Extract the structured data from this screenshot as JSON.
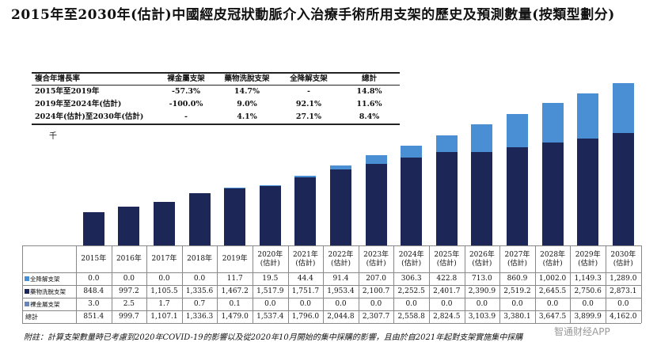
{
  "title": "2015年至2030年(估計)中國經皮冠狀動脈介入治療手術所用支架的歷史及預測數量(按類型劃分)",
  "cagr_table": {
    "header": [
      "複合年增長率",
      "裸金屬支架",
      "藥物洗脫支架",
      "全降解支架",
      "總計"
    ],
    "rows": [
      [
        "2015年至2019年",
        "-57.3%",
        "14.7%",
        "-",
        "14.8%"
      ],
      [
        "2019年至2024年(估計)",
        "-100.0%",
        "9.0%",
        "92.1%",
        "11.6%"
      ],
      [
        "2024年(估計)至2030年(估計)",
        "-",
        "4.1%",
        "27.1%",
        "8.4%"
      ]
    ]
  },
  "chart_data": {
    "type": "bar",
    "stacked": true,
    "unit": "千",
    "categories": [
      "2015年",
      "2016年",
      "2017年",
      "2018年",
      "2019年",
      "2020年(估計)",
      "2021年(估計)",
      "2022年(估計)",
      "2023年(估計)",
      "2024年(估計)",
      "2025年(估計)",
      "2026年(估計)",
      "2027年(估計)",
      "2028年(估計)",
      "2029年(估計)",
      "2030年(估計)"
    ],
    "series": [
      {
        "name": "全降解支架",
        "color": "#4a8fd4",
        "values": [
          0,
          0,
          0,
          0,
          11.7,
          19.5,
          44.4,
          91.4,
          207.0,
          306.3,
          422.8,
          713.0,
          860.9,
          1002.0,
          1149.3,
          1289.0
        ],
        "value_labels": [
          "0.0",
          "0.0",
          "0.0",
          "0.0",
          "11.7",
          "19.5",
          "44.4",
          "91.4",
          "207.0",
          "306.3",
          "422.8",
          "713.0",
          "860.9",
          "1,002.0",
          "1,149.3",
          "1,289.0"
        ]
      },
      {
        "name": "藥物洗脫支架",
        "color": "#1c2757",
        "values": [
          848.4,
          997.2,
          1105.5,
          1335.6,
          1467.2,
          1517.9,
          1751.7,
          1953.4,
          2100.7,
          2252.5,
          2401.7,
          2390.9,
          2519.2,
          2645.5,
          2750.6,
          2873.1
        ],
        "value_labels": [
          "848.4",
          "997.2",
          "1,105.5",
          "1,335.6",
          "1,467.2",
          "1,517.9",
          "1,751.7",
          "1,953.4",
          "2,100.7",
          "2,252.5",
          "2,401.7",
          "2,390.9",
          "2,519.2",
          "2,645.5",
          "2,750.6",
          "2,873.1"
        ]
      },
      {
        "name": "裸金屬支架",
        "color": "#6a86b8",
        "values": [
          3.0,
          2.5,
          1.7,
          0.7,
          0.1,
          0,
          0,
          0,
          0,
          0,
          0,
          0,
          0,
          0,
          0,
          0
        ],
        "value_labels": [
          "3.0",
          "2.5",
          "1.7",
          "0.7",
          "0.1",
          "0.0",
          "0.0",
          "0.0",
          "0.0",
          "0.0",
          "0.0",
          "0.0",
          "0.0",
          "0.0",
          "0.0",
          "0.0"
        ]
      }
    ],
    "total": {
      "name": "總計",
      "values": [
        851.4,
        999.7,
        1107.1,
        1336.3,
        1479.0,
        1537.4,
        1796.0,
        2044.8,
        2307.7,
        2558.8,
        2824.5,
        3103.9,
        3380.1,
        3647.5,
        3899.9,
        4162.0
      ],
      "value_labels": [
        "851.4",
        "999.7",
        "1,107.1",
        "1,336.3",
        "1,479.0",
        "1,537.4",
        "1,796.0",
        "2,044.8",
        "2,307.7",
        "2,558.8",
        "2,824.5",
        "3,103.9",
        "3,380.1",
        "3,647.5",
        "3,899.9",
        "4,162.0"
      ]
    }
  },
  "footnote": "附註：計算支架數量時已考慮到2020年COVID-19的影響以及從2020年10月開始的集中採購的影響，且由於自2021年起對支架實施集中採購",
  "watermark": "智通财经APP"
}
